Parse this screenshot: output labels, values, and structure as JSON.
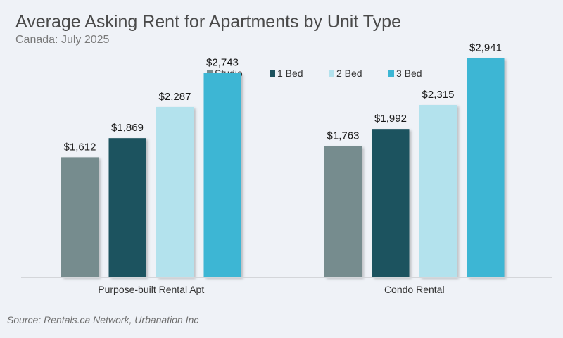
{
  "chart_data": {
    "type": "bar",
    "title": "Average Asking Rent for Apartments by Unit Type",
    "subtitle": "Canada: July 2025",
    "source": "Source: Rentals.ca Network, Urbanation Inc",
    "categories": [
      "Purpose-built Rental Apt",
      "Condo Rental"
    ],
    "series": [
      {
        "name": "Studio",
        "values": [
          1612,
          1763
        ],
        "labels": [
          "$1,612",
          "$1,763"
        ],
        "color": "#768c8e"
      },
      {
        "name": "1 Bed",
        "values": [
          1869,
          1992
        ],
        "labels": [
          "$1,869",
          "$1,992"
        ],
        "color": "#1c525e"
      },
      {
        "name": "2 Bed",
        "values": [
          2287,
          2315
        ],
        "labels": [
          "$2,287",
          "$2,315"
        ],
        "color": "#b3e2ed"
      },
      {
        "name": "3 Bed",
        "values": [
          2743,
          2941
        ],
        "labels": [
          "$2,743",
          "$2,941"
        ],
        "color": "#3cb6d4"
      }
    ],
    "ylim": [
      0,
      3250
    ],
    "grid": false,
    "legend_position": "top-center"
  }
}
